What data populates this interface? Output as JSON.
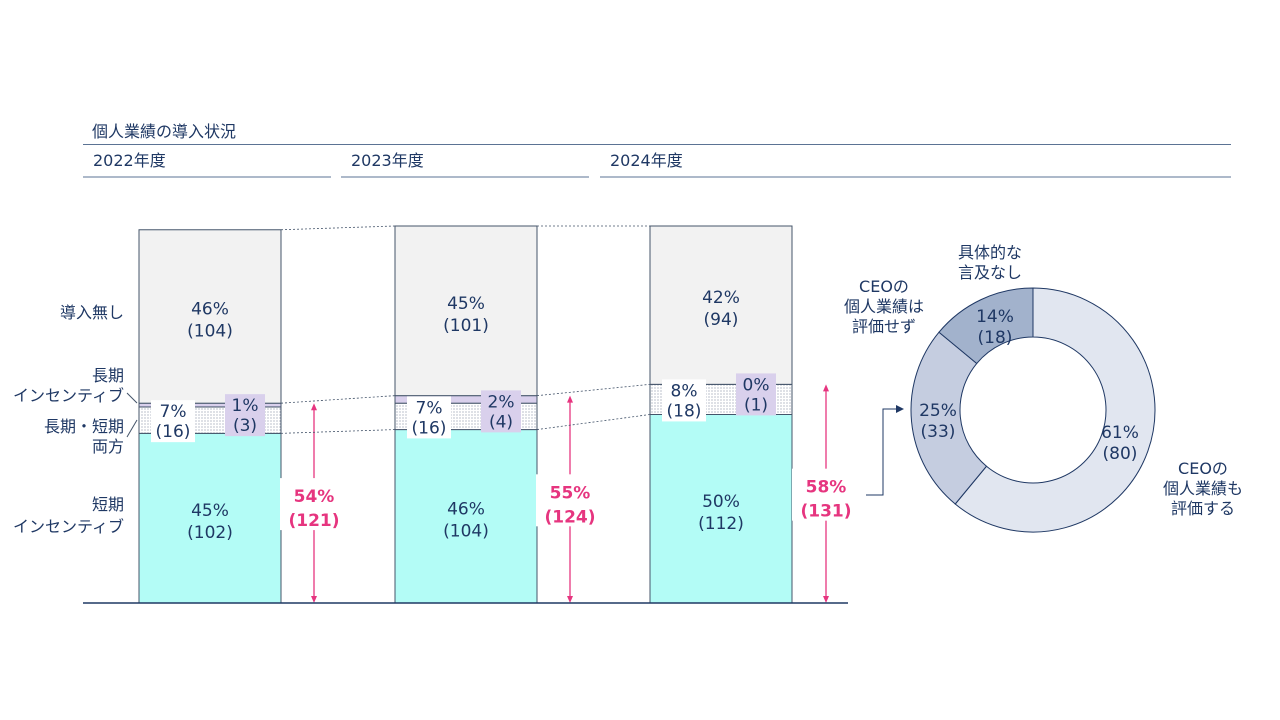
{
  "title": "個人業績の導入状況",
  "chart_data": [
    {
      "type": "bar",
      "stacked": true,
      "categories": [
        "2022年度",
        "2023年度",
        "2024年度"
      ],
      "series": [
        {
          "name": "短期インセンティブ",
          "percent": [
            45,
            46,
            50
          ],
          "count": [
            102,
            104,
            112
          ],
          "color": "#b3fcf6"
        },
        {
          "name": "長期・短期両方",
          "percent": [
            7,
            7,
            8
          ],
          "count": [
            16,
            16,
            18
          ],
          "color": "#e8eef2"
        },
        {
          "name": "長期インセンティブ",
          "percent": [
            1,
            2,
            0
          ],
          "count": [
            3,
            4,
            1
          ],
          "color": "#d9d0ec"
        },
        {
          "name": "導入無し",
          "percent": [
            46,
            45,
            42
          ],
          "count": [
            104,
            101,
            94
          ],
          "color": "#f2f2f2"
        }
      ],
      "series_labels": [
        "短期\nインセンティブ",
        "長期・短期\n両方",
        "長期\nインセンティブ",
        "導入無し"
      ],
      "totals": {
        "percent": [
          54,
          55,
          58
        ],
        "count": [
          121,
          124,
          131
        ],
        "color": "#e6357f"
      },
      "ylim": [
        0,
        100
      ]
    },
    {
      "type": "pie",
      "donut": true,
      "slices": [
        {
          "label": "CEOの\n個人業績も\n評価する",
          "percent": 61,
          "count": 80,
          "color": "#e1e6f0"
        },
        {
          "label": "CEOの\n個人業績は\n評価せず",
          "percent": 25,
          "count": 33,
          "color": "#c5cde0"
        },
        {
          "label": "具体的な\n言及なし",
          "percent": 14,
          "count": 18,
          "color": "#a2b2cc"
        }
      ]
    }
  ],
  "colors": {
    "text": "#1f3864",
    "accent": "#e6357f",
    "line": "#44546a"
  }
}
